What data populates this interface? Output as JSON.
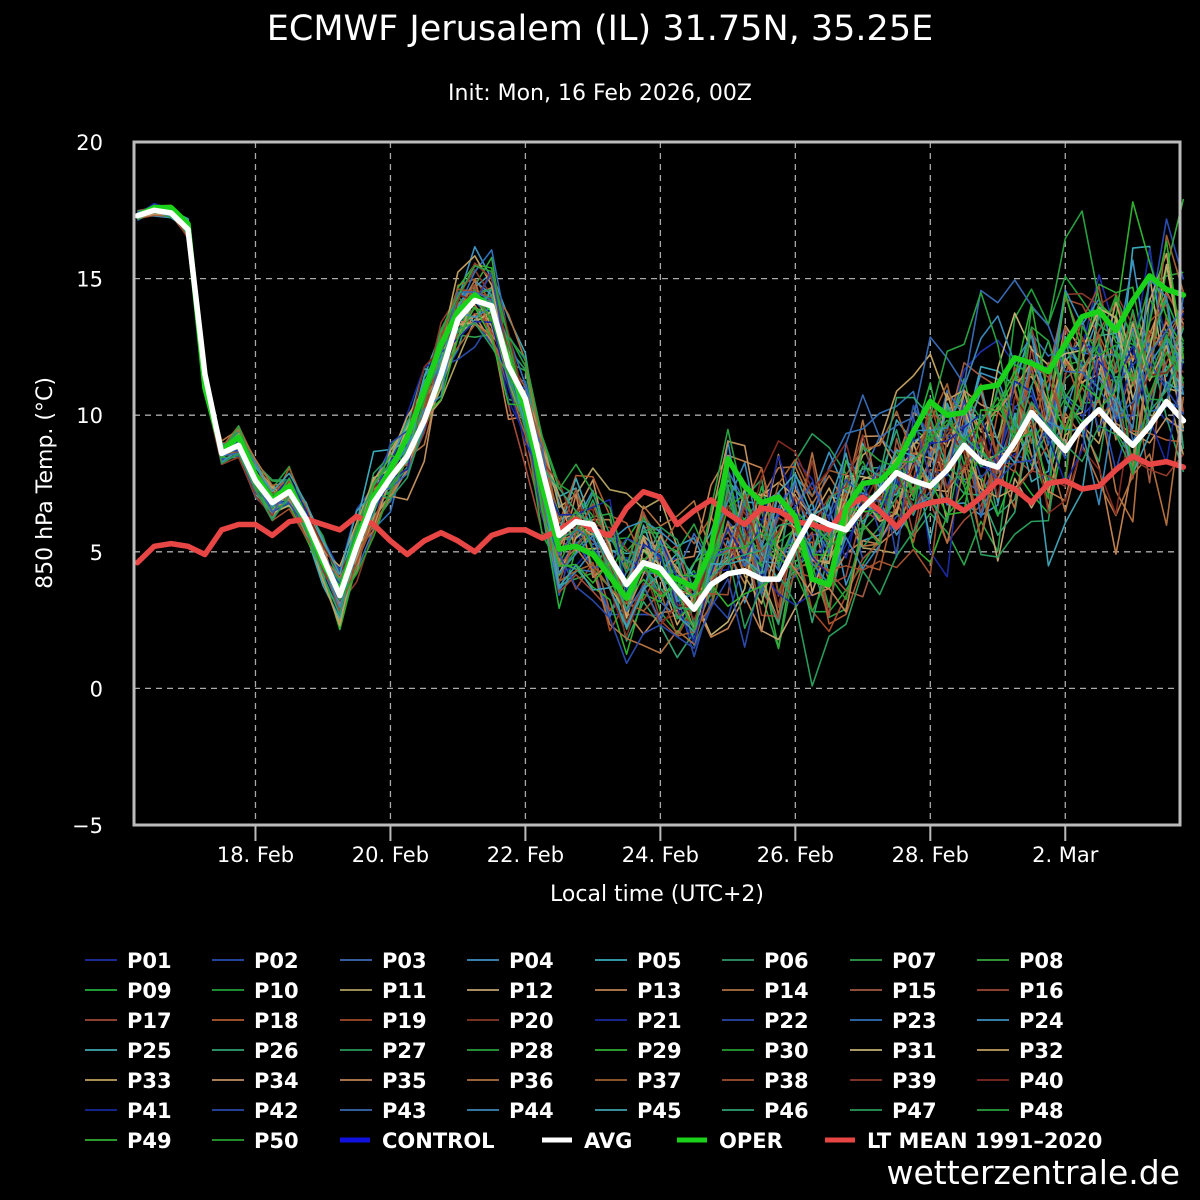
{
  "chart_data": {
    "type": "line",
    "title": "ECMWF Jerusalem (IL) 31.75N, 35.25E",
    "subtitle": "Init: Mon, 16 Feb 2026, 00Z",
    "xlabel": "Local time (UTC+2)",
    "ylabel": "850 hPa Temp. (°C)",
    "ylim": [
      -5,
      20
    ],
    "yticks": [
      -5,
      0,
      5,
      10,
      15,
      20
    ],
    "x_range_days": [
      16.2,
      31.7
    ],
    "x_ticks": [
      {
        "label": "18. Feb",
        "day": 18
      },
      {
        "label": "20. Feb",
        "day": 20
      },
      {
        "label": "22. Feb",
        "day": 22
      },
      {
        "label": "24. Feb",
        "day": 24
      },
      {
        "label": "26. Feb",
        "day": 26
      },
      {
        "label": "28. Feb",
        "day": 28
      },
      {
        "label": "2. Mar",
        "day": 30
      }
    ],
    "grid": true,
    "time_step_hours": 6,
    "start_day": 16.25,
    "members": [
      "P01",
      "P02",
      "P03",
      "P04",
      "P05",
      "P06",
      "P07",
      "P08",
      "P09",
      "P10",
      "P11",
      "P12",
      "P13",
      "P14",
      "P15",
      "P16",
      "P17",
      "P18",
      "P19",
      "P20",
      "P21",
      "P22",
      "P23",
      "P24",
      "P25",
      "P26",
      "P27",
      "P28",
      "P29",
      "P30",
      "P31",
      "P32",
      "P33",
      "P34",
      "P35",
      "P36",
      "P37",
      "P38",
      "P39",
      "P40",
      "P41",
      "P42",
      "P43",
      "P44",
      "P45",
      "P46",
      "P47",
      "P48",
      "P49",
      "P50"
    ],
    "member_colors": [
      "#1f2fa8",
      "#2a4bb0",
      "#3a6bb8",
      "#3f8fc0",
      "#3aa8b8",
      "#2f9a6a",
      "#2ea04a",
      "#35a83a",
      "#22b03a",
      "#1fa03a",
      "#b0a060",
      "#c0a070",
      "#c08050",
      "#b07040",
      "#a05a40",
      "#a04a3a",
      "#a04a3a",
      "#b05a30",
      "#a04a2a",
      "#8a3a2a",
      "#1a2aa0",
      "#2a4aa8",
      "#3070b8",
      "#3a90c0",
      "#40a8b0",
      "#30a070",
      "#2a9a5a",
      "#2aa040",
      "#30b030",
      "#28a030",
      "#c0b070",
      "#c0a060",
      "#c0a060",
      "#c09060",
      "#c08050",
      "#b07040",
      "#a06030",
      "#a05030",
      "#903a2a",
      "#802a20",
      "#1a28a0",
      "#2a48a8",
      "#3868b0",
      "#3a88b8",
      "#40a0b0",
      "#30a070",
      "#2a9a5a",
      "#2aa040",
      "#30b030",
      "#28a030"
    ],
    "series": [
      {
        "name": "AVG",
        "color": "#ffffff",
        "values": [
          17.3,
          17.5,
          17.4,
          16.8,
          11.5,
          8.6,
          8.9,
          7.6,
          6.8,
          7.2,
          6.2,
          4.8,
          3.4,
          5.2,
          6.8,
          7.7,
          8.5,
          9.8,
          11.5,
          13.5,
          14.2,
          14.0,
          11.8,
          10.6,
          8.0,
          5.6,
          6.1,
          6.0,
          4.8,
          3.8,
          4.6,
          4.4,
          3.6,
          2.9,
          3.8,
          4.2,
          4.3,
          4.0,
          4.0,
          5.2,
          6.3,
          6.0,
          5.8,
          6.6,
          7.2,
          7.9,
          7.6,
          7.4,
          8.0,
          8.9,
          8.3,
          8.1,
          9.0,
          10.1,
          9.4,
          8.7,
          9.6,
          10.2,
          9.5,
          8.9,
          9.6,
          10.5,
          9.8
        ]
      },
      {
        "name": "OPER",
        "color": "#1ad21a",
        "values": [
          17.3,
          17.6,
          17.6,
          17.0,
          11.0,
          8.7,
          9.2,
          7.8,
          6.9,
          7.4,
          6.1,
          4.6,
          3.5,
          5.4,
          7.0,
          8.0,
          9.2,
          10.9,
          12.6,
          13.8,
          14.4,
          13.9,
          12.0,
          10.2,
          7.4,
          5.1,
          5.2,
          4.9,
          4.1,
          3.3,
          4.6,
          4.2,
          4.0,
          3.7,
          5.1,
          8.4,
          7.4,
          6.8,
          7.0,
          6.3,
          4.0,
          3.8,
          6.6,
          7.5,
          7.6,
          8.2,
          9.4,
          10.5,
          10.0,
          10.1,
          11.0,
          11.1,
          12.1,
          11.9,
          11.6,
          12.6,
          13.6,
          13.8,
          13.1,
          14.2,
          15.1,
          14.6,
          14.4
        ]
      },
      {
        "name": "LT MEAN 1991-2020",
        "color": "#e84545",
        "values": [
          4.6,
          5.2,
          5.3,
          5.2,
          4.9,
          5.8,
          6.0,
          6.0,
          5.6,
          6.1,
          6.2,
          6.0,
          5.8,
          6.3,
          6.0,
          5.4,
          4.9,
          5.4,
          5.7,
          5.4,
          5.0,
          5.6,
          5.8,
          5.8,
          5.5,
          5.8,
          6.2,
          5.8,
          5.6,
          6.6,
          7.2,
          7.0,
          6.0,
          6.5,
          6.9,
          6.4,
          6.0,
          6.6,
          6.5,
          6.1,
          6.0,
          5.8,
          6.6,
          7.0,
          6.5,
          5.9,
          6.6,
          6.8,
          6.9,
          6.5,
          7.0,
          7.6,
          7.3,
          6.8,
          7.5,
          7.6,
          7.3,
          7.4,
          8.0,
          8.5,
          8.2,
          8.3,
          8.1
        ]
      }
    ],
    "legend": [
      {
        "label": "P01"
      },
      {
        "label": "P02"
      },
      {
        "label": "P03"
      },
      {
        "label": "P04"
      },
      {
        "label": "P05"
      },
      {
        "label": "P06"
      },
      {
        "label": "P07"
      },
      {
        "label": "P08"
      },
      {
        "label": "P09"
      },
      {
        "label": "P10"
      },
      {
        "label": "P11"
      },
      {
        "label": "P12"
      },
      {
        "label": "P13"
      },
      {
        "label": "P14"
      },
      {
        "label": "P15"
      },
      {
        "label": "P16"
      },
      {
        "label": "P17"
      },
      {
        "label": "P18"
      },
      {
        "label": "P19"
      },
      {
        "label": "P20"
      },
      {
        "label": "P21"
      },
      {
        "label": "P22"
      },
      {
        "label": "P23"
      },
      {
        "label": "P24"
      },
      {
        "label": "P25"
      },
      {
        "label": "P26"
      },
      {
        "label": "P27"
      },
      {
        "label": "P28"
      },
      {
        "label": "P29"
      },
      {
        "label": "P30"
      },
      {
        "label": "P31"
      },
      {
        "label": "P32"
      },
      {
        "label": "P33"
      },
      {
        "label": "P34"
      },
      {
        "label": "P35"
      },
      {
        "label": "P36"
      },
      {
        "label": "P37"
      },
      {
        "label": "P38"
      },
      {
        "label": "P39"
      },
      {
        "label": "P40"
      },
      {
        "label": "P41"
      },
      {
        "label": "P42"
      },
      {
        "label": "P43"
      },
      {
        "label": "P44"
      },
      {
        "label": "P45"
      },
      {
        "label": "P46"
      },
      {
        "label": "P47"
      },
      {
        "label": "P48"
      },
      {
        "label": "P49"
      },
      {
        "label": "P50"
      },
      {
        "label": "CONTROL",
        "color": "#1010e0",
        "bold_line": true
      },
      {
        "label": "AVG",
        "color": "#ffffff",
        "bold_line": true
      },
      {
        "label": "OPER",
        "color": "#1ad21a",
        "bold_line": true
      },
      {
        "label": "LT MEAN 1991–2020",
        "color": "#e84545",
        "bold_line": true
      }
    ],
    "legend_position": "bottom"
  },
  "watermark": "wetterzentrale.de"
}
